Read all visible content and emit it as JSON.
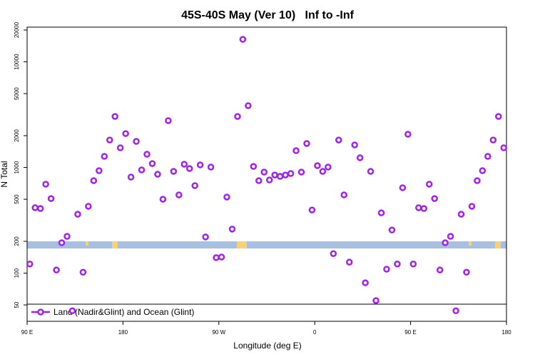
{
  "chart_data": {
    "type": "scatter",
    "title": "45S-40S May (Ver 10)   Inf to -Inf",
    "x_label": "Longitude (deg E)",
    "y_label": "N Total",
    "log_y": true,
    "legend": "bottom-left",
    "xlim": [
      90,
      540
    ],
    "ylim": [
      35,
      21300
    ],
    "xticks": [
      {
        "value": 90,
        "label": "90 E"
      },
      {
        "value": 180,
        "label": "180"
      },
      {
        "value": 270,
        "label": "90 W"
      },
      {
        "value": 360,
        "label": "0"
      },
      {
        "value": 450,
        "label": "90 E"
      },
      {
        "value": 540,
        "label": "180"
      }
    ],
    "yticks": [
      50,
      100,
      200,
      500,
      1000,
      2000,
      5000,
      10000,
      20000
    ],
    "x": [
      92.5,
      97.5,
      102.5,
      107.5,
      112.5,
      117.5,
      122.5,
      127.5,
      132.5,
      137.5,
      142.5,
      147.5,
      152.5,
      157.5,
      162.5,
      167.5,
      172.5,
      177.5,
      182.5,
      187.5,
      192.5,
      197.5,
      202.5,
      207.5,
      212.5,
      217.5,
      222.5,
      227.5,
      232.5,
      237.5,
      242.5,
      247.5,
      252.5,
      257.5,
      262.5,
      267.5,
      272.5,
      277.5,
      282.5,
      287.5,
      292.5,
      297.5,
      302.5,
      307.5,
      312.5,
      317.5,
      322.5,
      327.5,
      332.5,
      337.5,
      342.5,
      347.5,
      352.5,
      357.5,
      362.5,
      367.5,
      372.5,
      377.5,
      382.5,
      387.5,
      392.5,
      397.5,
      402.5,
      407.5,
      412.5,
      417.5,
      422.5,
      427.5,
      432.5,
      437.5,
      442.5,
      447.5,
      452.5,
      457.5,
      462.5,
      467.5,
      472.5,
      477.5,
      482.5,
      487.5,
      492.5,
      497.5,
      502.5,
      507.5,
      512.5,
      517.5,
      522.5,
      527.5,
      532.5,
      537.5
    ],
    "series": [
      {
        "name": "Land (Nadir&Glint) and Ocean (Glint)",
        "color": "#a020f0",
        "values": [
          122,
          416,
          409,
          695,
          508,
          107,
          194,
          223,
          44,
          361,
          102,
          429,
          750,
          933,
          1274,
          1820,
          3041,
          1535,
          2094,
          811,
          1766,
          948,
          1334,
          1089,
          863,
          501,
          2773,
          918,
          550,
          1074,
          977,
          673,
          1057,
          220,
          1009,
          140,
          142,
          525,
          261,
          3041,
          16330,
          3846,
          1023,
          750,
          904,
          762,
          849,
          824,
          849,
          877,
          1442,
          904,
          1687,
          396,
          1040,
          918,
          1009,
          153,
          1820,
          550,
          127,
          1633,
          1236,
          81,
          918,
          55,
          372,
          109,
          256,
          122,
          643,
          2065,
          122,
          416,
          409,
          695,
          508,
          107,
          194,
          223,
          44,
          361,
          102,
          429,
          750,
          933,
          1274,
          1820,
          3041,
          1535
        ]
      }
    ]
  }
}
